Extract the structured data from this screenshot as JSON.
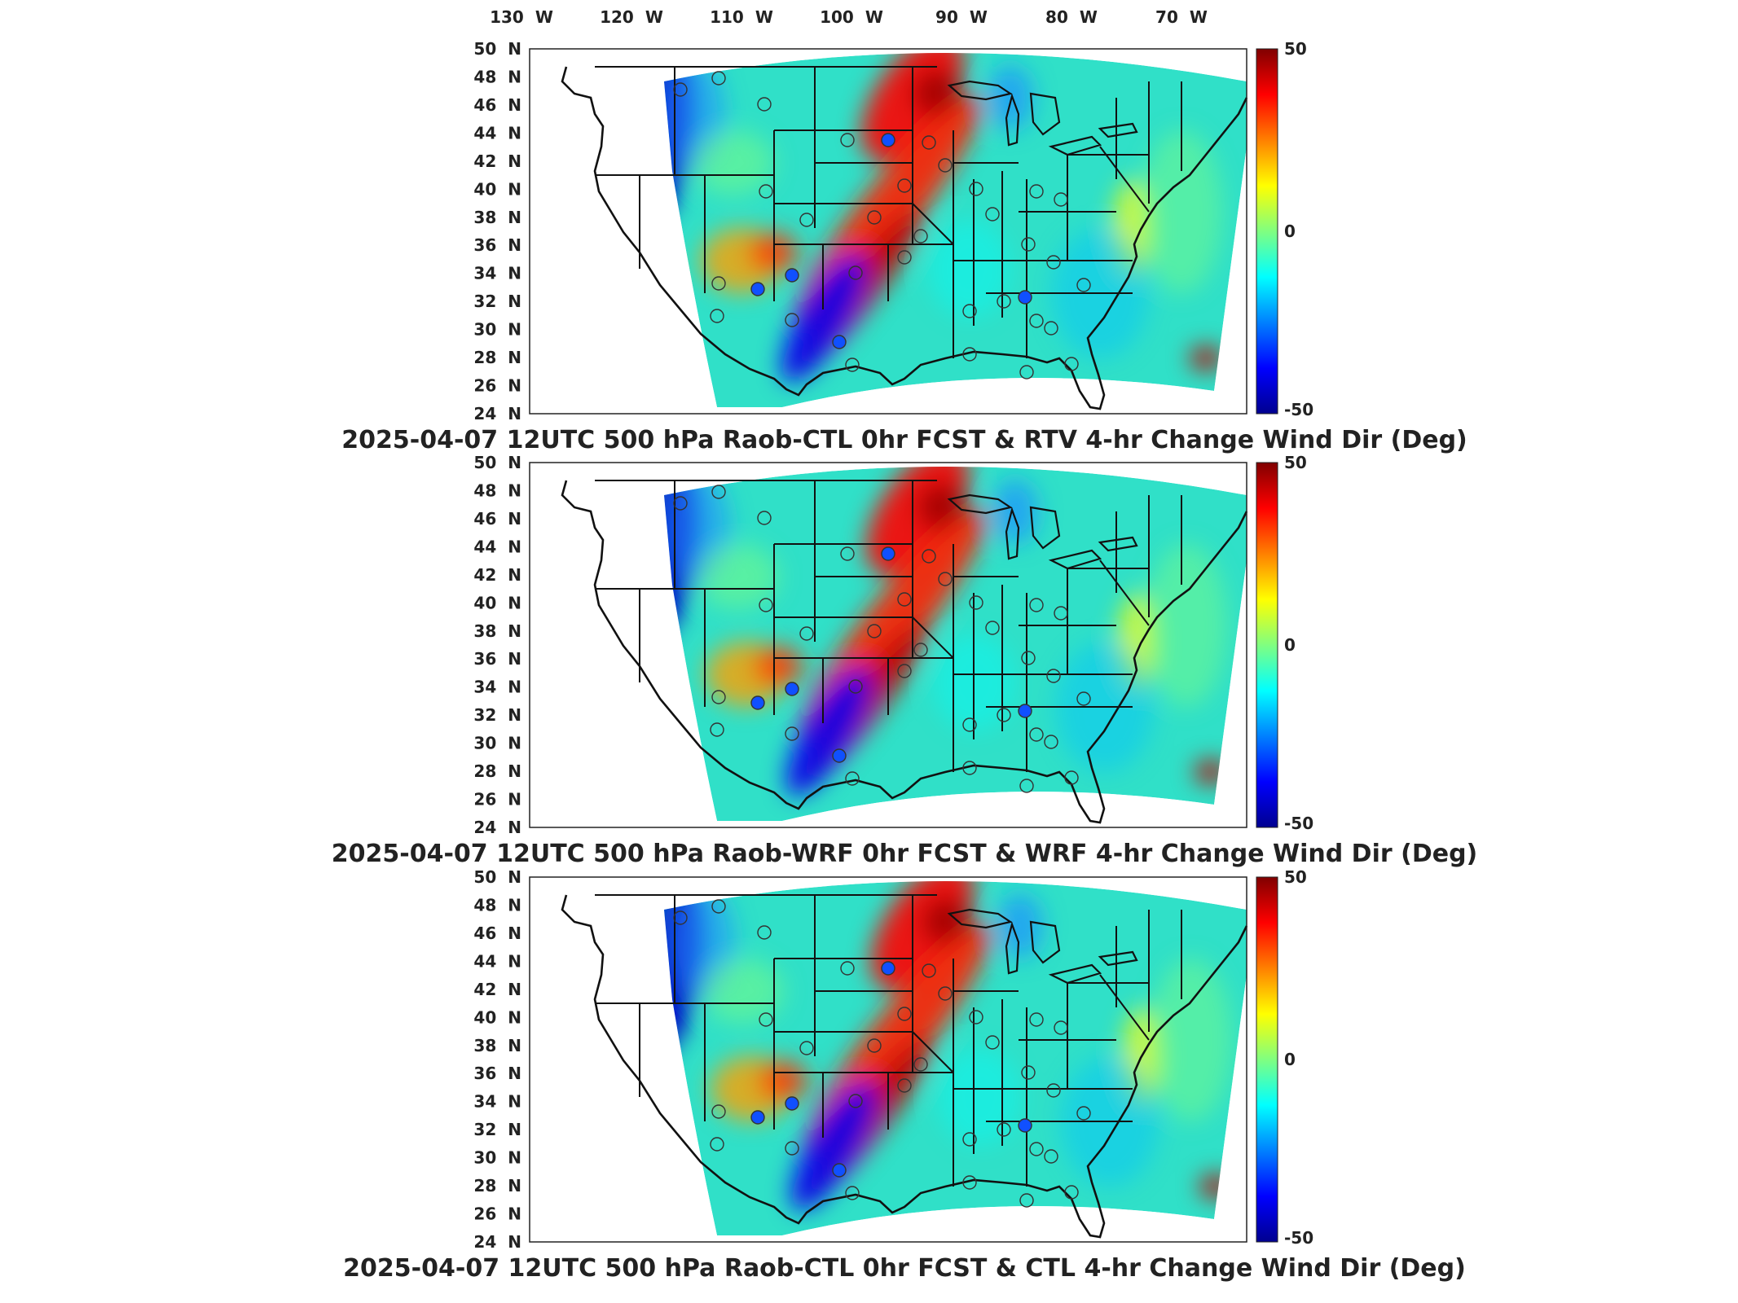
{
  "colorbar": {
    "max_label": "50",
    "mid_label": "0",
    "min_label": "-50",
    "colors": [
      "#00008f",
      "#0000ff",
      "#0080ff",
      "#00ffff",
      "#80ff80",
      "#ffff00",
      "#ff8000",
      "#ff0000",
      "#800000"
    ]
  },
  "lon_ticks": [
    {
      "deg": "130",
      "dir": "W"
    },
    {
      "deg": "120",
      "dir": "W"
    },
    {
      "deg": "110",
      "dir": "W"
    },
    {
      "deg": "100",
      "dir": "W"
    },
    {
      "deg": "90",
      "dir": "W"
    },
    {
      "deg": "80",
      "dir": "W"
    },
    {
      "deg": "70",
      "dir": "W"
    }
  ],
  "lat_ticks": [
    {
      "deg": "50",
      "dir": "N"
    },
    {
      "deg": "48",
      "dir": "N"
    },
    {
      "deg": "46",
      "dir": "N"
    },
    {
      "deg": "44",
      "dir": "N"
    },
    {
      "deg": "42",
      "dir": "N"
    },
    {
      "deg": "40",
      "dir": "N"
    },
    {
      "deg": "38",
      "dir": "N"
    },
    {
      "deg": "36",
      "dir": "N"
    },
    {
      "deg": "34",
      "dir": "N"
    },
    {
      "deg": "32",
      "dir": "N"
    },
    {
      "deg": "30",
      "dir": "N"
    },
    {
      "deg": "28",
      "dir": "N"
    },
    {
      "deg": "26",
      "dir": "N"
    },
    {
      "deg": "24",
      "dir": "N"
    }
  ],
  "panels": [
    {
      "title": "2025-04-07 12UTC 500 hPa Raob-CTL 0hr FCST & RTV 4-hr Change Wind Dir (Deg)"
    },
    {
      "title": "2025-04-07 12UTC 500 hPa Raob-WRF 0hr FCST & WRF 4-hr Change Wind Dir (Deg)"
    },
    {
      "title": "2025-04-07 12UTC 500 hPa Raob-CTL 0hr FCST & CTL 4-hr Change Wind Dir (Deg)"
    }
  ]
}
